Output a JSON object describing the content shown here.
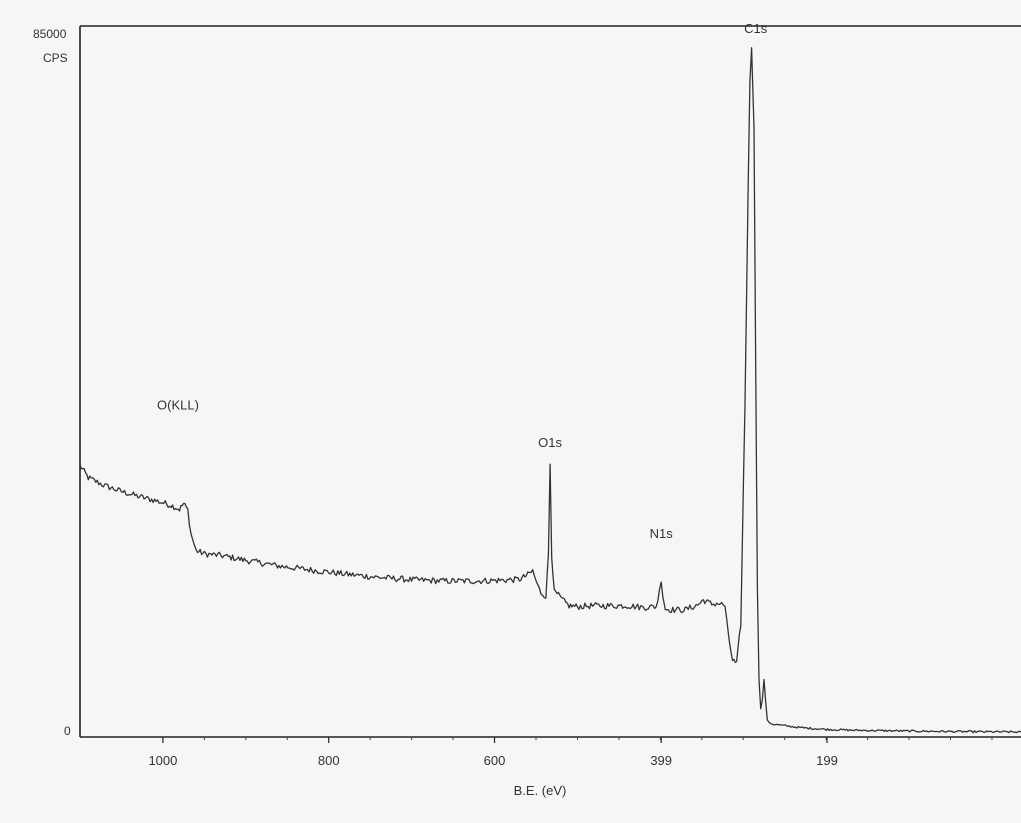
{
  "chart_data": {
    "type": "line",
    "title": "",
    "xlabel": "B.E. (eV)",
    "ylabel": "CPS",
    "y_top_label": "85000",
    "y_zero_label": "0",
    "xlim": [
      1100,
      -35
    ],
    "ylim": [
      0,
      85000
    ],
    "x_ticks": [
      1000,
      800,
      600,
      399,
      199
    ],
    "x_tick_labels": [
      "1000",
      "800",
      "600",
      "399",
      "199"
    ],
    "grid": false,
    "x_reversed": true,
    "line_color": "#333333",
    "annotations": [
      {
        "label": "O(KLL)",
        "x": 977,
        "y": 34000
      },
      {
        "label": "O1s",
        "x": 533,
        "y": 33300
      },
      {
        "label": "N1s",
        "x": 399,
        "y": 21000
      },
      {
        "label": "C1s",
        "x": 285,
        "y": 85000
      }
    ],
    "series": [
      {
        "name": "",
        "points": [
          [
            1100,
            33000
          ],
          [
            1090,
            31500
          ],
          [
            1070,
            30500
          ],
          [
            1050,
            29800
          ],
          [
            1030,
            29200
          ],
          [
            1010,
            28700
          ],
          [
            990,
            28100
          ],
          [
            980,
            27600
          ],
          [
            975,
            28300
          ],
          [
            970,
            27500
          ],
          [
            966,
            24500
          ],
          [
            960,
            22500
          ],
          [
            950,
            22100
          ],
          [
            930,
            21900
          ],
          [
            900,
            21300
          ],
          [
            860,
            20600
          ],
          [
            820,
            20100
          ],
          [
            780,
            19600
          ],
          [
            740,
            19200
          ],
          [
            700,
            18900
          ],
          [
            660,
            18750
          ],
          [
            620,
            18750
          ],
          [
            590,
            18850
          ],
          [
            570,
            18950
          ],
          [
            560,
            19500
          ],
          [
            554,
            20000
          ],
          [
            548,
            18200
          ],
          [
            544,
            17300
          ],
          [
            538,
            16900
          ],
          [
            535,
            22000
          ],
          [
            533,
            33300
          ],
          [
            531,
            22000
          ],
          [
            528,
            17400
          ],
          [
            523,
            17000
          ],
          [
            518,
            16400
          ],
          [
            510,
            15700
          ],
          [
            500,
            15600
          ],
          [
            480,
            15700
          ],
          [
            460,
            15700
          ],
          [
            440,
            15700
          ],
          [
            420,
            15500
          ],
          [
            405,
            15600
          ],
          [
            401,
            17500
          ],
          [
            399,
            19000
          ],
          [
            397,
            17000
          ],
          [
            394,
            15300
          ],
          [
            385,
            15200
          ],
          [
            370,
            15200
          ],
          [
            355,
            15800
          ],
          [
            348,
            16400
          ],
          [
            338,
            15900
          ],
          [
            330,
            16000
          ],
          [
            322,
            15700
          ],
          [
            318,
            12000
          ],
          [
            313,
            9000
          ],
          [
            308,
            8500
          ],
          [
            303,
            13500
          ],
          [
            298,
            40000
          ],
          [
            294,
            68000
          ],
          [
            292,
            80000
          ],
          [
            290,
            84700
          ],
          [
            287,
            75000
          ],
          [
            285,
            45000
          ],
          [
            283,
            18000
          ],
          [
            281,
            7000
          ],
          [
            279,
            2800
          ],
          [
            277,
            4200
          ],
          [
            275,
            6300
          ],
          [
            273,
            4200
          ],
          [
            271,
            1500
          ],
          [
            265,
            1100
          ],
          [
            250,
            900
          ],
          [
            230,
            650
          ],
          [
            200,
            450
          ],
          [
            170,
            350
          ],
          [
            130,
            280
          ],
          [
            90,
            230
          ],
          [
            50,
            180
          ],
          [
            10,
            150
          ],
          [
            -35,
            120
          ]
        ]
      }
    ]
  }
}
